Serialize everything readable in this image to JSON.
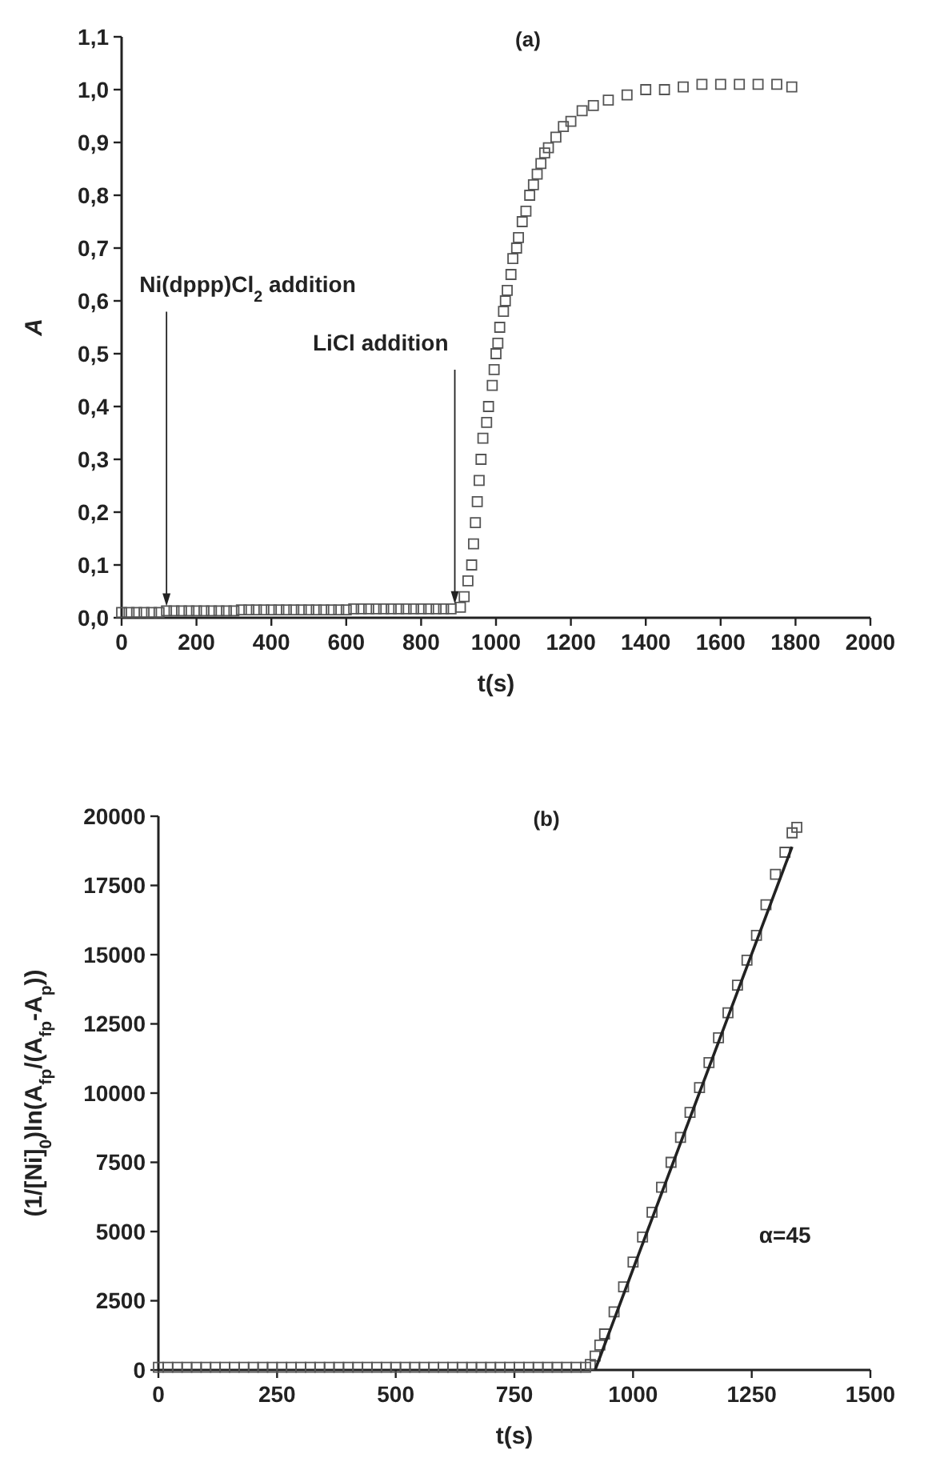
{
  "chart_data": [
    {
      "type": "scatter",
      "title": "(a)",
      "xlabel": "t(s)",
      "ylabel": "A",
      "marker": "square",
      "grid": false,
      "xlim": [
        0,
        2000
      ],
      "xticks": [
        0,
        200,
        400,
        600,
        800,
        1000,
        1200,
        1400,
        1600,
        1800,
        2000
      ],
      "ylim": [
        0,
        1.1
      ],
      "yticks": [
        {
          "value": 0,
          "label": "0,0"
        },
        {
          "value": 0.1,
          "label": "0,1"
        },
        {
          "value": 0.2,
          "label": "0,2"
        },
        {
          "value": 0.3,
          "label": "0,3"
        },
        {
          "value": 0.4,
          "label": "0,4"
        },
        {
          "value": 0.5,
          "label": "0,5"
        },
        {
          "value": 0.6,
          "label": "0,6"
        },
        {
          "value": 0.7,
          "label": "0,7"
        },
        {
          "value": 0.8,
          "label": "0,8"
        },
        {
          "value": 0.9,
          "label": "0,9"
        },
        {
          "value": 1.0,
          "label": "1,0"
        },
        {
          "value": 1.1,
          "label": "1,1"
        }
      ],
      "annotations": [
        {
          "text": "Ni(dppp)Cl$_{2}$ addition",
          "x": 120,
          "y": 0.013
        },
        {
          "text": "LiCl addition",
          "x": 890,
          "y": 0.017
        }
      ],
      "series": [
        {
          "color": "#555555",
          "x": [
            0,
            20,
            40,
            60,
            80,
            100,
            120,
            140,
            160,
            180,
            200,
            220,
            240,
            260,
            280,
            300,
            320,
            340,
            360,
            380,
            400,
            420,
            440,
            460,
            480,
            500,
            520,
            540,
            560,
            580,
            600,
            620,
            640,
            660,
            680,
            700,
            720,
            740,
            760,
            780,
            800,
            820,
            840,
            860,
            880,
            905,
            915,
            925,
            935,
            940,
            945,
            950,
            955,
            960,
            965,
            975,
            980,
            990,
            995,
            1000,
            1005,
            1010,
            1020,
            1025,
            1030,
            1040,
            1045,
            1055,
            1060,
            1070,
            1080,
            1090,
            1100,
            1110,
            1120,
            1130,
            1140,
            1160,
            1180,
            1200,
            1230,
            1260,
            1300,
            1350,
            1400,
            1450,
            1500,
            1550,
            1600,
            1650,
            1700,
            1750,
            1790
          ],
          "values": [
            0.01,
            0.01,
            0.01,
            0.01,
            0.01,
            0.01,
            0.013,
            0.013,
            0.013,
            0.013,
            0.013,
            0.013,
            0.013,
            0.013,
            0.013,
            0.013,
            0.015,
            0.015,
            0.015,
            0.015,
            0.015,
            0.015,
            0.015,
            0.015,
            0.015,
            0.015,
            0.015,
            0.015,
            0.015,
            0.015,
            0.015,
            0.017,
            0.017,
            0.017,
            0.017,
            0.017,
            0.017,
            0.017,
            0.017,
            0.017,
            0.017,
            0.017,
            0.017,
            0.017,
            0.017,
            0.02,
            0.04,
            0.07,
            0.1,
            0.14,
            0.18,
            0.22,
            0.26,
            0.3,
            0.34,
            0.37,
            0.4,
            0.44,
            0.47,
            0.5,
            0.52,
            0.55,
            0.58,
            0.6,
            0.62,
            0.65,
            0.68,
            0.7,
            0.72,
            0.75,
            0.77,
            0.8,
            0.82,
            0.84,
            0.86,
            0.88,
            0.89,
            0.91,
            0.93,
            0.94,
            0.96,
            0.97,
            0.98,
            0.99,
            1.0,
            1.0,
            1.005,
            1.01,
            1.01,
            1.01,
            1.01,
            1.01,
            1.005
          ]
        }
      ]
    },
    {
      "type": "scatter",
      "title": "(b)",
      "xlabel": "t(s)",
      "ylabel": "(1/[Ni]$_{0}$)ln(A$_{fp}$/(A$_{fp}$-A$_{p}$))",
      "marker": "square",
      "grid": false,
      "xlim": [
        0,
        1500
      ],
      "xticks": [
        0,
        250,
        500,
        750,
        1000,
        1250,
        1500
      ],
      "ylim": [
        0,
        20000
      ],
      "yticks": [
        0,
        2500,
        5000,
        7500,
        10000,
        12500,
        15000,
        17500,
        20000
      ],
      "annotations": [
        "α=45"
      ],
      "series": [
        {
          "color": "#555555",
          "x": [
            0,
            20,
            40,
            60,
            80,
            100,
            120,
            140,
            160,
            180,
            200,
            220,
            240,
            260,
            280,
            300,
            320,
            340,
            360,
            380,
            400,
            420,
            440,
            460,
            480,
            500,
            520,
            540,
            560,
            580,
            600,
            620,
            640,
            660,
            680,
            700,
            720,
            740,
            760,
            780,
            800,
            820,
            840,
            860,
            880,
            900,
            910,
            920,
            930,
            940,
            960,
            980,
            1000,
            1020,
            1040,
            1060,
            1080,
            1100,
            1120,
            1140,
            1160,
            1180,
            1200,
            1220,
            1240,
            1260,
            1280,
            1300,
            1320,
            1335,
            1345
          ],
          "values": [
            100,
            100,
            100,
            100,
            100,
            100,
            100,
            100,
            100,
            100,
            100,
            100,
            100,
            100,
            100,
            100,
            100,
            100,
            100,
            100,
            100,
            100,
            100,
            100,
            100,
            100,
            100,
            100,
            100,
            100,
            100,
            100,
            100,
            100,
            100,
            100,
            100,
            100,
            100,
            100,
            100,
            100,
            100,
            100,
            100,
            100,
            200,
            500,
            900,
            1300,
            2100,
            3000,
            3900,
            4800,
            5700,
            6600,
            7500,
            8400,
            9300,
            10200,
            11100,
            12000,
            12900,
            13900,
            14800,
            15700,
            16800,
            17900,
            18700,
            19400,
            19600
          ]
        },
        {
          "type": "line",
          "color": "#222222",
          "x": [
            920,
            1335
          ],
          "values": [
            0,
            18900
          ],
          "marker": "none",
          "line_style": "solid"
        }
      ]
    }
  ]
}
